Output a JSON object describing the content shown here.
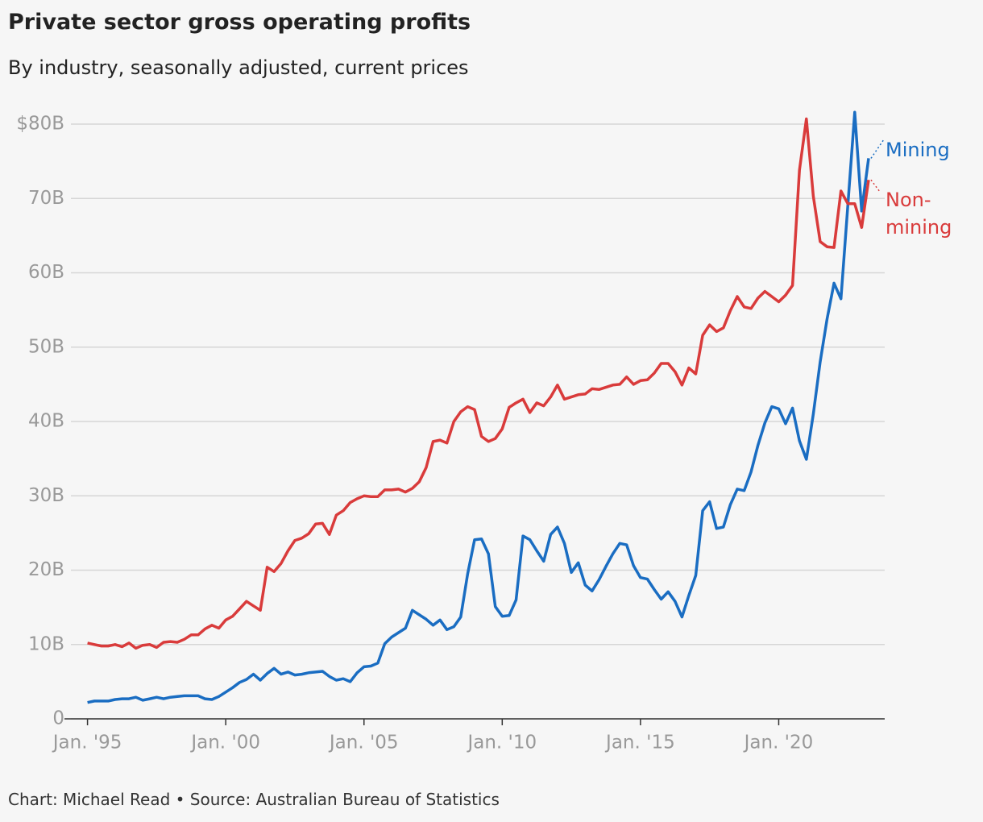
{
  "chart_data": {
    "type": "line",
    "title": "Private sector gross operating profits",
    "subtitle": "By industry, seasonally adjusted, current prices",
    "source": "Chart: Michael Read • Source: Australian Bureau of Statistics",
    "x": [
      "1995-01",
      "1995-04",
      "1995-07",
      "1995-10",
      "1996-01",
      "1996-04",
      "1996-07",
      "1996-10",
      "1997-01",
      "1997-04",
      "1997-07",
      "1997-10",
      "1998-01",
      "1998-04",
      "1998-07",
      "1998-10",
      "1999-01",
      "1999-04",
      "1999-07",
      "1999-10",
      "2000-01",
      "2000-04",
      "2000-07",
      "2000-10",
      "2001-01",
      "2001-04",
      "2001-07",
      "2001-10",
      "2002-01",
      "2002-04",
      "2002-07",
      "2002-10",
      "2003-01",
      "2003-04",
      "2003-07",
      "2003-10",
      "2004-01",
      "2004-04",
      "2004-07",
      "2004-10",
      "2005-01",
      "2005-04",
      "2005-07",
      "2005-10",
      "2006-01",
      "2006-04",
      "2006-07",
      "2006-10",
      "2007-01",
      "2007-04",
      "2007-07",
      "2007-10",
      "2008-01",
      "2008-04",
      "2008-07",
      "2008-10",
      "2009-01",
      "2009-04",
      "2009-07",
      "2009-10",
      "2010-01",
      "2010-04",
      "2010-07",
      "2010-10",
      "2011-01",
      "2011-04",
      "2011-07",
      "2011-10",
      "2012-01",
      "2012-04",
      "2012-07",
      "2012-10",
      "2013-01",
      "2013-04",
      "2013-07",
      "2013-10",
      "2014-01",
      "2014-04",
      "2014-07",
      "2014-10",
      "2015-01",
      "2015-04",
      "2015-07",
      "2015-10",
      "2016-01",
      "2016-04",
      "2016-07",
      "2016-10",
      "2017-01",
      "2017-04",
      "2017-07",
      "2017-10",
      "2018-01",
      "2018-04",
      "2018-07",
      "2018-10",
      "2019-01",
      "2019-04",
      "2019-07",
      "2019-10",
      "2020-01",
      "2020-04",
      "2020-07",
      "2020-10",
      "2021-01",
      "2021-04",
      "2021-07",
      "2021-10",
      "2022-01",
      "2022-04",
      "2022-07",
      "2022-10",
      "2023-01",
      "2023-04"
    ],
    "series": [
      {
        "name": "Mining",
        "color": "#1a6dc2",
        "values": [
          2.2,
          2.4,
          2.4,
          2.4,
          2.6,
          2.7,
          2.7,
          2.9,
          2.5,
          2.7,
          2.9,
          2.7,
          2.9,
          3.0,
          3.1,
          3.1,
          3.1,
          2.7,
          2.6,
          3.0,
          3.6,
          4.2,
          4.9,
          5.3,
          6.0,
          5.2,
          6.1,
          6.8,
          6.0,
          6.3,
          5.9,
          6.0,
          6.2,
          6.3,
          6.4,
          5.7,
          5.2,
          5.4,
          5.0,
          6.2,
          7.0,
          7.1,
          7.5,
          10.1,
          11.0,
          11.6,
          12.2,
          14.6,
          14.0,
          13.4,
          12.6,
          13.3,
          12.0,
          12.4,
          13.7,
          19.5,
          24.1,
          24.2,
          22.2,
          15.1,
          13.8,
          13.9,
          16.0,
          24.6,
          24.1,
          22.6,
          21.2,
          24.8,
          25.8,
          23.6,
          19.7,
          21.0,
          18.0,
          17.2,
          18.7,
          20.5,
          22.2,
          23.6,
          23.4,
          20.6,
          19.0,
          18.8,
          17.4,
          16.1,
          17.1,
          15.8,
          13.7,
          16.6,
          19.3,
          28.0,
          29.2,
          25.6,
          25.8,
          28.8,
          30.9,
          30.7,
          33.2,
          36.8,
          39.8,
          42.0,
          41.7,
          39.7,
          41.8,
          37.4,
          34.9,
          41.0,
          48.0,
          53.8,
          58.6,
          56.5,
          69.0,
          81.6,
          68.3,
          75.4
        ]
      },
      {
        "name": "Non-mining",
        "color": "#d93b3b",
        "values": [
          10.2,
          10.0,
          9.8,
          9.8,
          10.0,
          9.7,
          10.2,
          9.5,
          9.9,
          10.0,
          9.6,
          10.3,
          10.4,
          10.3,
          10.7,
          11.3,
          11.3,
          12.1,
          12.6,
          12.2,
          13.3,
          13.8,
          14.8,
          15.8,
          15.2,
          14.6,
          20.4,
          19.8,
          20.9,
          22.6,
          24.0,
          24.3,
          24.9,
          26.2,
          26.3,
          24.8,
          27.4,
          28.0,
          29.1,
          29.6,
          30.0,
          29.9,
          29.9,
          30.8,
          30.8,
          30.9,
          30.5,
          31.0,
          31.9,
          33.8,
          37.3,
          37.5,
          37.1,
          40.0,
          41.3,
          42.0,
          41.6,
          38.0,
          37.3,
          37.7,
          39.0,
          41.9,
          42.5,
          43.0,
          41.2,
          42.5,
          42.1,
          43.3,
          44.9,
          43.0,
          43.3,
          43.6,
          43.7,
          44.4,
          44.3,
          44.6,
          44.9,
          45.0,
          46.0,
          45.0,
          45.5,
          45.6,
          46.5,
          47.8,
          47.8,
          46.7,
          44.9,
          47.2,
          46.4,
          51.6,
          53.0,
          52.1,
          52.6,
          54.9,
          56.8,
          55.4,
          55.2,
          56.6,
          57.5,
          56.8,
          56.1,
          57.0,
          58.3,
          73.8,
          80.7,
          70.3,
          64.2,
          63.5,
          63.4,
          71.0,
          69.3,
          69.3,
          66.1,
          72.5
        ]
      }
    ],
    "xlim": [
      "1994-03",
      "2023-11"
    ],
    "xticks": [
      {
        "value": "1995-01",
        "label": "Jan. '95"
      },
      {
        "value": "2000-01",
        "label": "Jan. '00"
      },
      {
        "value": "2005-01",
        "label": "Jan. '05"
      },
      {
        "value": "2010-01",
        "label": "Jan. '10"
      },
      {
        "value": "2015-01",
        "label": "Jan. '15"
      },
      {
        "value": "2020-01",
        "label": "Jan. '20"
      }
    ],
    "ylim": [
      0,
      80
    ],
    "yticks": [
      0,
      {
        "value": 10,
        "label": "10B"
      },
      {
        "value": 20,
        "label": "20B"
      },
      {
        "value": 30,
        "label": "30B"
      },
      {
        "value": 40,
        "label": "40B"
      },
      {
        "value": 50,
        "label": "50B"
      },
      {
        "value": 60,
        "label": "60B"
      },
      {
        "value": 70,
        "label": "70B"
      },
      {
        "value": 80,
        "label": "$80B"
      }
    ],
    "grid": true
  }
}
